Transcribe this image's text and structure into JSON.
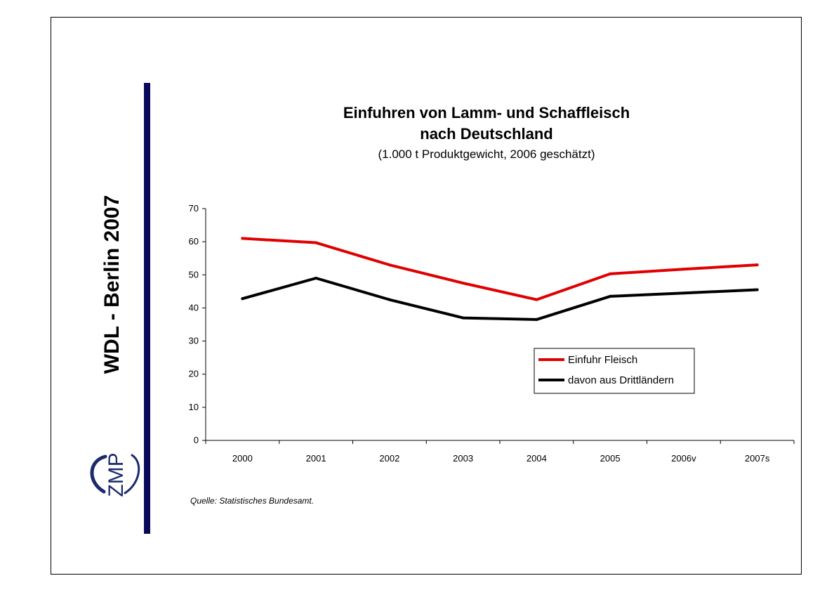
{
  "side_title": "WDL - Berlin 2007",
  "logo_text": "ZMP",
  "source": "Quelle: Statistisches Bundesamt.",
  "colors": {
    "series1": "#e00000",
    "series2": "#000000",
    "accent_bar": "#0a0a5a",
    "logo": "#1a2a6c"
  },
  "chart_data": {
    "type": "line",
    "title_line1": "Einfuhren von Lamm- und Schaffleisch",
    "title_line2": "nach Deutschland",
    "subtitle": "(1.000 t Produktgewicht, 2006 geschätzt)",
    "categories": [
      "2000",
      "2001",
      "2002",
      "2003",
      "2004",
      "2005",
      "2006v",
      "2007s"
    ],
    "ylim": [
      0,
      70
    ],
    "yticks": [
      0,
      10,
      20,
      30,
      40,
      50,
      60,
      70
    ],
    "grid": false,
    "legend_position": "lower-right",
    "series": [
      {
        "name": "Einfuhr Fleisch",
        "color": "#e00000",
        "values": [
          61,
          59.7,
          53,
          47.5,
          42.5,
          50.3,
          51.7,
          53
        ]
      },
      {
        "name": "davon aus Drittländern",
        "color": "#000000",
        "values": [
          42.8,
          49,
          42.5,
          37,
          36.5,
          43.5,
          44.5,
          45.5
        ]
      }
    ]
  }
}
